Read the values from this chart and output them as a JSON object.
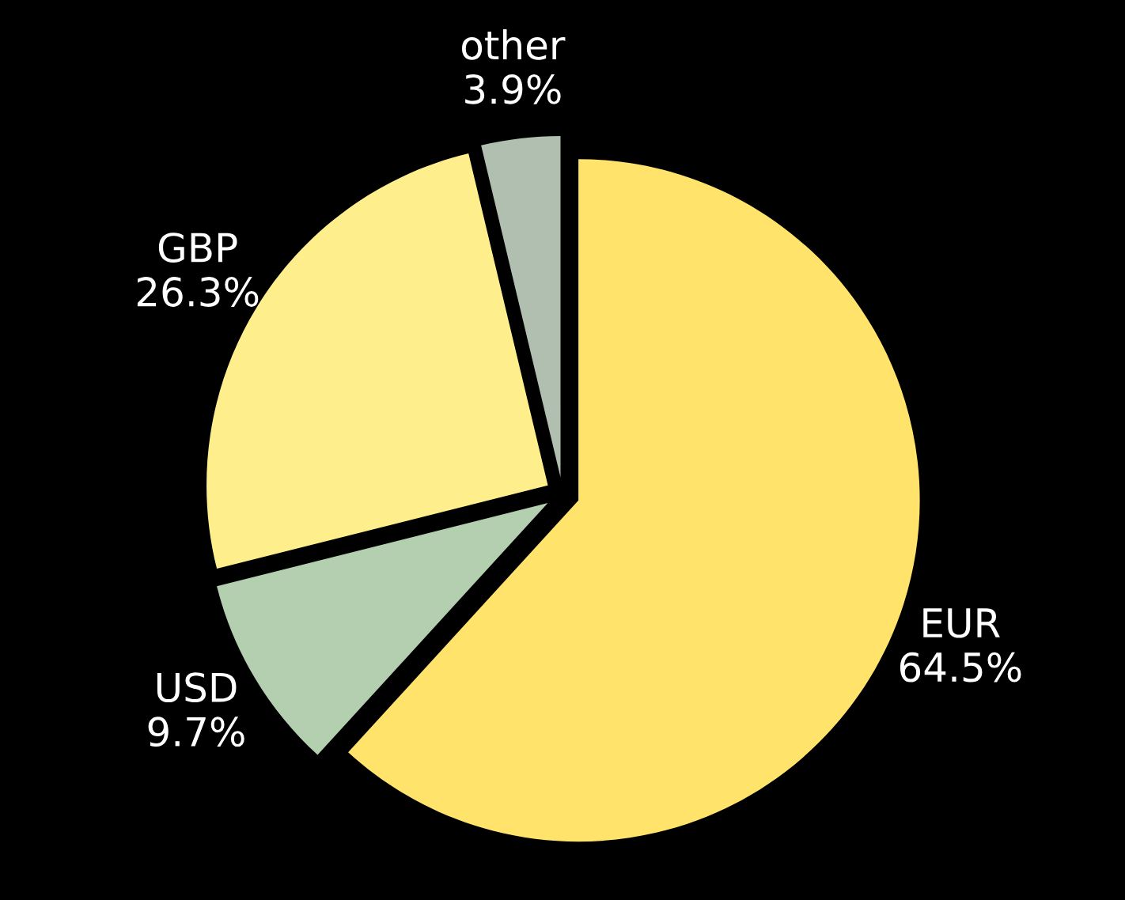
{
  "chart_data": {
    "type": "pie",
    "categories": [
      "EUR",
      "USD",
      "GBP",
      "other"
    ],
    "values": [
      64.5,
      9.7,
      26.3,
      3.9
    ],
    "value_labels": [
      "64.5%",
      "9.7%",
      "26.3%",
      "3.9%"
    ],
    "colors": [
      "#ffe36b",
      "#b4cfb0",
      "#ffef8c",
      "#b0bfb0"
    ]
  }
}
